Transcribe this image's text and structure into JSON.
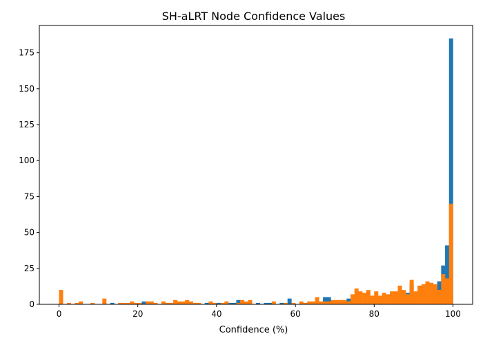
{
  "chart_data": {
    "type": "bar",
    "title": "SH-aLRT Node Confidence Values",
    "xlabel": "Confidence (%)",
    "ylabel": "",
    "xlim": [
      -5,
      105
    ],
    "ylim": [
      0,
      194
    ],
    "x_ticks": [
      0,
      20,
      40,
      60,
      80,
      100
    ],
    "y_ticks": [
      0,
      25,
      50,
      75,
      100,
      125,
      150,
      175
    ],
    "bin_width": 1,
    "grid": false,
    "series": [
      {
        "color": "#1f77b4",
        "bins": [
          [
            13,
            1
          ],
          [
            21,
            2
          ],
          [
            37,
            1
          ],
          [
            40,
            1
          ],
          [
            43,
            1
          ],
          [
            44,
            1
          ],
          [
            45,
            3
          ],
          [
            50,
            1
          ],
          [
            52,
            1
          ],
          [
            53,
            1
          ],
          [
            56,
            1
          ],
          [
            58,
            4
          ],
          [
            67,
            5
          ],
          [
            68,
            5
          ],
          [
            72,
            2
          ],
          [
            73,
            4
          ],
          [
            81,
            5
          ],
          [
            88,
            8
          ],
          [
            89,
            14
          ],
          [
            95,
            12
          ],
          [
            96,
            16
          ],
          [
            97,
            27
          ],
          [
            98,
            41
          ],
          [
            99,
            185
          ]
        ]
      },
      {
        "color": "#ff7f0e",
        "bins": [
          [
            0,
            10
          ],
          [
            2,
            1
          ],
          [
            4,
            1
          ],
          [
            5,
            2
          ],
          [
            8,
            1
          ],
          [
            11,
            4
          ],
          [
            15,
            1
          ],
          [
            16,
            1
          ],
          [
            17,
            1
          ],
          [
            18,
            2
          ],
          [
            19,
            1
          ],
          [
            20,
            1
          ],
          [
            22,
            2
          ],
          [
            23,
            2
          ],
          [
            24,
            1
          ],
          [
            26,
            2
          ],
          [
            27,
            1
          ],
          [
            28,
            1
          ],
          [
            29,
            3
          ],
          [
            30,
            2
          ],
          [
            31,
            2
          ],
          [
            32,
            3
          ],
          [
            33,
            2
          ],
          [
            34,
            1
          ],
          [
            35,
            1
          ],
          [
            38,
            2
          ],
          [
            39,
            1
          ],
          [
            41,
            1
          ],
          [
            42,
            2
          ],
          [
            45,
            1
          ],
          [
            46,
            3
          ],
          [
            47,
            2
          ],
          [
            48,
            3
          ],
          [
            54,
            2
          ],
          [
            57,
            1
          ],
          [
            59,
            1
          ],
          [
            61,
            2
          ],
          [
            62,
            1
          ],
          [
            63,
            2
          ],
          [
            64,
            2
          ],
          [
            65,
            5
          ],
          [
            66,
            2
          ],
          [
            67,
            2
          ],
          [
            68,
            2
          ],
          [
            69,
            3
          ],
          [
            70,
            3
          ],
          [
            71,
            3
          ],
          [
            72,
            3
          ],
          [
            73,
            2
          ],
          [
            74,
            7
          ],
          [
            75,
            11
          ],
          [
            76,
            9
          ],
          [
            77,
            8
          ],
          [
            78,
            10
          ],
          [
            79,
            6
          ],
          [
            80,
            9
          ],
          [
            81,
            6
          ],
          [
            82,
            8
          ],
          [
            83,
            7
          ],
          [
            84,
            9
          ],
          [
            85,
            9
          ],
          [
            86,
            13
          ],
          [
            87,
            10
          ],
          [
            88,
            7
          ],
          [
            89,
            17
          ],
          [
            90,
            9
          ],
          [
            91,
            13
          ],
          [
            92,
            14
          ],
          [
            93,
            16
          ],
          [
            94,
            15
          ],
          [
            95,
            14
          ],
          [
            96,
            10
          ],
          [
            97,
            21
          ],
          [
            98,
            18
          ],
          [
            99,
            70
          ]
        ]
      }
    ]
  }
}
